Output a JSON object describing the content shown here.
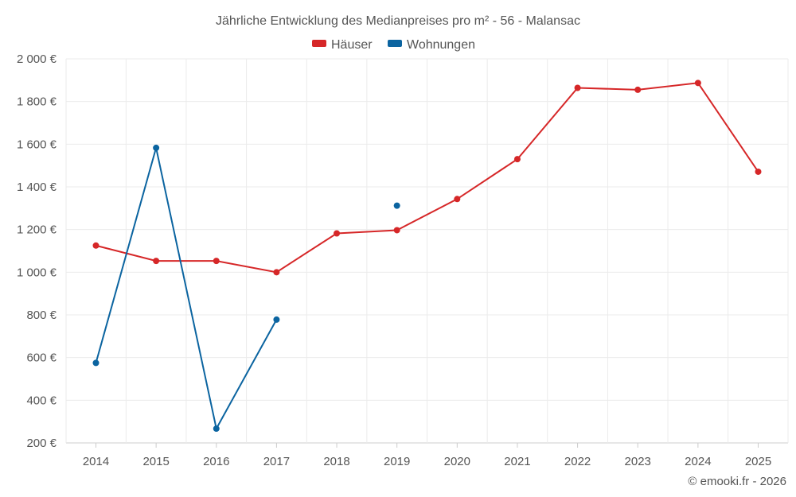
{
  "chart_data": {
    "type": "line",
    "title": "Jährliche Entwicklung des Medianpreises pro m² - 56 - Malansac",
    "x": [
      2014,
      2015,
      2016,
      2017,
      2018,
      2019,
      2020,
      2021,
      2022,
      2023,
      2024,
      2025
    ],
    "x_tick_labels": [
      "2014",
      "2015",
      "2016",
      "2017",
      "2018",
      "2019",
      "2020",
      "2021",
      "2022",
      "2023",
      "2024",
      "2025"
    ],
    "ylim": [
      200,
      2000
    ],
    "y_ticks": [
      200,
      400,
      600,
      800,
      1000,
      1200,
      1400,
      1600,
      1800,
      2000
    ],
    "y_tick_labels": [
      "200 €",
      "400 €",
      "600 €",
      "800 €",
      "1 000 €",
      "1 200 €",
      "1 400 €",
      "1 600 €",
      "1 800 €",
      "2 000 €"
    ],
    "grid": true,
    "legend_position": "top-center",
    "series": [
      {
        "name": "Häuser",
        "color": "#d62728",
        "values": [
          1125,
          1053,
          1053,
          1000,
          1182,
          1197,
          1343,
          1530,
          1864,
          1855,
          1887,
          1471
        ]
      },
      {
        "name": "Wohnungen",
        "color": "#0b64a0",
        "values": [
          575,
          1583,
          267,
          778,
          null,
          1312,
          null,
          null,
          null,
          null,
          null,
          null
        ]
      }
    ]
  },
  "credit": "© emooki.fr - 2026"
}
